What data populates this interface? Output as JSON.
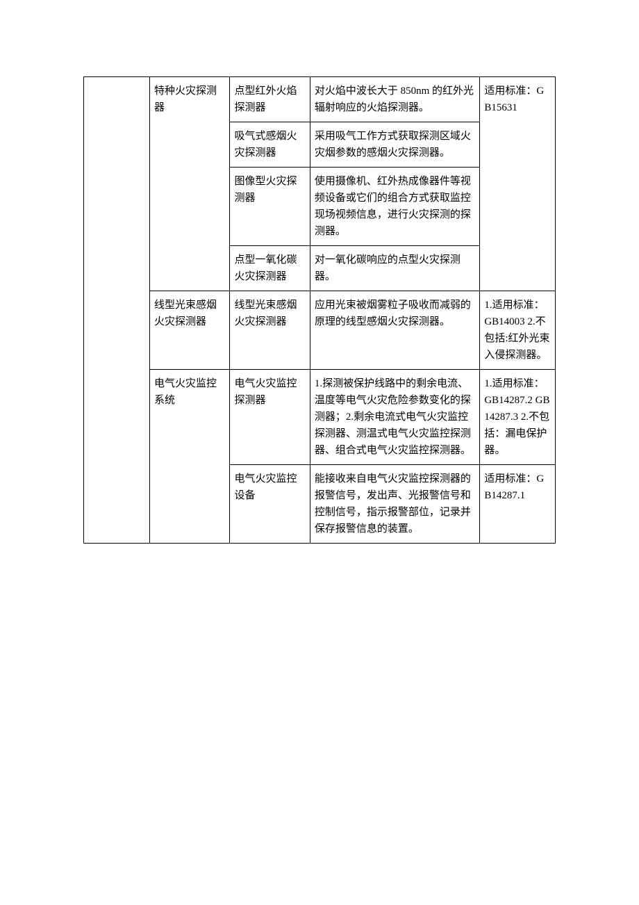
{
  "table": {
    "border_color": "#000000",
    "background_color": "#ffffff",
    "font_size": 15,
    "text_color": "#000000",
    "column_widths_pct": [
      14,
      17,
      17,
      36,
      16
    ],
    "rows": [
      {
        "c0": "",
        "c1": "特种火灾探测器",
        "c2": "点型红外火焰探测器",
        "c3": "对火焰中波长大于 850nm 的红外光辐射响应的火焰探测器。",
        "c4": "适用标准：GB15631",
        "c0_rowspan": 7,
        "c1_rowspan": 4,
        "c4_rowspan": 4
      },
      {
        "c2": "吸气式感烟火灾探测器",
        "c3": "采用吸气工作方式获取探测区域火灾烟参数的感烟火灾探测器。"
      },
      {
        "c2": "图像型火灾探测器",
        "c3": "使用摄像机、红外热成像器件等视频设备或它们的组合方式获取监控现场视频信息，进行火灾探测的探测器。"
      },
      {
        "c2": "点型一氧化碳火灾探测器",
        "c3": "对一氧化碳响应的点型火灾探测器。"
      },
      {
        "c1": "线型光束感烟火灾探测器",
        "c2": "线型光束感烟火灾探测器",
        "c3": "应用光束被烟雾粒子吸收而减弱的原理的线型感烟火灾探测器。",
        "c4": "1.适用标准：GB14003 2.不包括:红外光束入侵探测器。"
      },
      {
        "c1": "电气火灾监控系统",
        "c2": "电气火灾监控探测器",
        "c3": "1.探测被保护线路中的剩余电流、温度等电气火灾危险参数变化的探测器；2.剩余电流式电气火灾监控探测器、测温式电气火灾监控探测器、组合式电气火灾监控探测器。",
        "c4": "1.适用标准：GB14287.2  GB14287.3 2.不包括：漏电保护器。",
        "c1_rowspan": 2
      },
      {
        "c2": "电气火灾监控设备",
        "c3": "能接收来自电气火灾监控探测器的报警信号，发出声、光报警信号和控制信号，指示报警部位，记录并保存报警信息的装置。",
        "c4": "适用标准：GB14287.1"
      }
    ]
  }
}
